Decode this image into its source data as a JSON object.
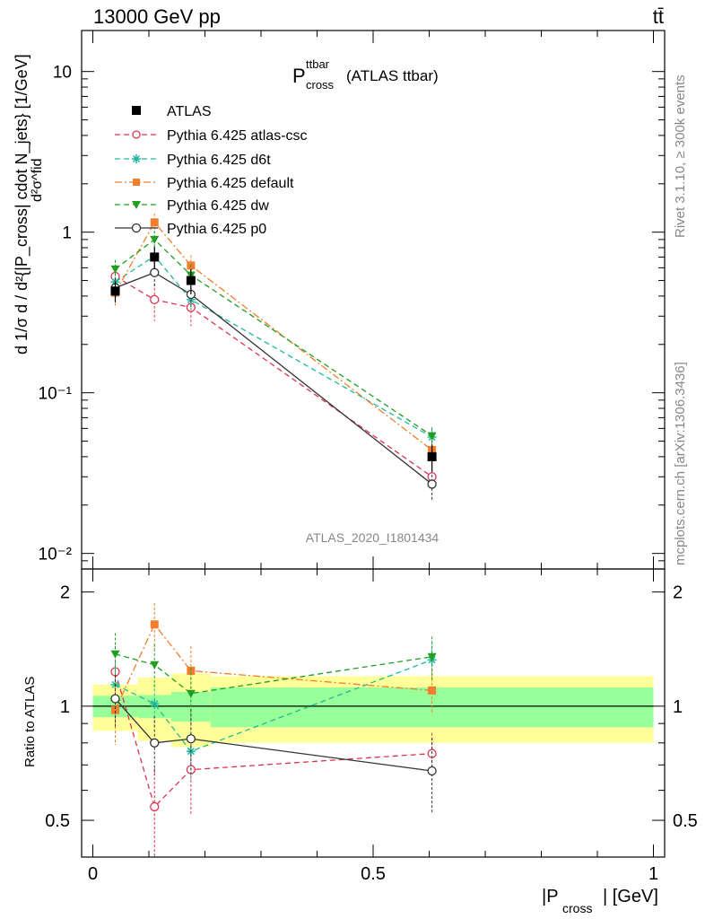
{
  "header": {
    "energy": "13000 GeV pp",
    "process": "tt̄"
  },
  "plot": {
    "title_main": "P",
    "title_sup": "ttbar",
    "title_sub": "cross",
    "title_tail": "(ATLAS ttbar)",
    "analysis": "ATLAS_2020_I1801434",
    "ylabel_top": "d²σ^fid",
    "ylabel_main": "d 1/σ d / d²{|P_cross| cdot N_jets} [1/GeV]",
    "ylabel_ratio": "Ratio to ATLAS",
    "xlabel_main": "|P",
    "xlabel_sub": "cross",
    "xlabel_tail": "| [GeV]"
  },
  "side": {
    "rivet": "Rivet 3.1.10, ≥ 300k events",
    "mcplots": "mcplots.cern.ch [arXiv:1306.3436]"
  },
  "legend": {
    "atlas": "ATLAS",
    "s0": "Pythia 6.425 atlas-csc",
    "s1": "Pythia 6.425 d6t",
    "s2": "Pythia 6.425 default",
    "s3": "Pythia 6.425 dw",
    "s4": "Pythia 6.425 p0"
  },
  "chart_data": {
    "type": "scatter",
    "x_range": [
      -0.02,
      1.02
    ],
    "y_range": [
      0.008,
      18
    ],
    "y_scale": "log",
    "ratio_range": [
      0.4,
      2.3
    ],
    "ratio_scale": "log",
    "x_ticks": [
      "0",
      "0.5",
      "1"
    ],
    "y_ticks_main": [
      "10⁻²",
      "10⁻¹",
      "1",
      "10"
    ],
    "y_ticks_ratio": [
      "0.5",
      "1",
      "2"
    ],
    "legend_position": "top-left",
    "x": [
      0.04,
      0.11,
      0.175,
      0.605
    ],
    "data": {
      "name": "ATLAS",
      "values": [
        0.43,
        0.7,
        0.5,
        0.04
      ],
      "rel_unc_inner": [
        0.08,
        0.08,
        0.09,
        0.08
      ],
      "rel_unc_outer": [
        0.15,
        0.16,
        0.18,
        0.19
      ]
    },
    "bands": [
      {
        "x0": 0.0,
        "x1": 0.08,
        "inner": 0.065,
        "outer": 0.14
      },
      {
        "x0": 0.08,
        "x1": 0.14,
        "inner": 0.07,
        "outer": 0.19
      },
      {
        "x0": 0.14,
        "x1": 0.21,
        "inner": 0.09,
        "outer": 0.22
      },
      {
        "x0": 0.21,
        "x1": 1.0,
        "inner": 0.12,
        "outer": 0.2
      }
    ],
    "series": [
      {
        "name": "Pythia 6.425 atlas-csc",
        "color": "#e0334f",
        "marker": "open-circle",
        "dash": "6,4",
        "values": [
          0.53,
          0.38,
          0.34,
          0.03
        ],
        "errors": [
          0.09,
          0.1,
          0.08,
          0.004
        ]
      },
      {
        "name": "Pythia 6.425 d6t",
        "color": "#1fb99a",
        "marker": "star",
        "dash": "6,4",
        "values": [
          0.49,
          0.71,
          0.38,
          0.053
        ],
        "errors": [
          0.07,
          0.09,
          0.06,
          0.006
        ]
      },
      {
        "name": "Pythia 6.425 default",
        "color": "#f07e2c",
        "marker": "square",
        "dash": "8,3,2,3",
        "values": [
          0.42,
          1.15,
          0.62,
          0.044
        ],
        "errors": [
          0.08,
          0.16,
          0.1,
          0.006
        ]
      },
      {
        "name": "Pythia 6.425 dw",
        "color": "#1f9e21",
        "marker": "triangle-down",
        "dash": "6,4",
        "values": [
          0.59,
          0.9,
          0.54,
          0.054
        ],
        "errors": [
          0.08,
          0.12,
          0.09,
          0.007
        ]
      },
      {
        "name": "Pythia 6.425 p0",
        "color": "#333333",
        "marker": "open-circle",
        "dash": "",
        "values": [
          0.45,
          0.56,
          0.41,
          0.027
        ],
        "errors": [
          0.07,
          0.1,
          0.08,
          0.006
        ]
      }
    ]
  }
}
